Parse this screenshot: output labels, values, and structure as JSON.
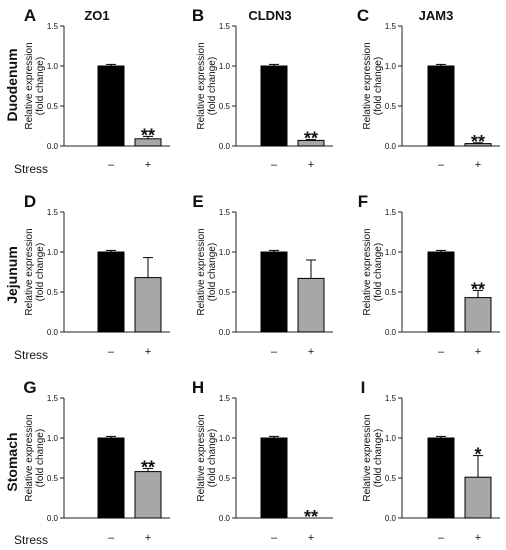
{
  "figure": {
    "column_titles": [
      "ZO1",
      "CLDN3",
      "JAM3"
    ],
    "row_labels": [
      "Duodenum",
      "Jejunum",
      "Stomach"
    ],
    "stress_label": "Stress"
  },
  "colors": {
    "control": "#000000",
    "stress": "#a7a7aa",
    "axis": "#222222"
  },
  "chart_data": [
    {
      "panel": "A",
      "type": "bar",
      "title": "ZO1",
      "categories": [
        "–",
        "+"
      ],
      "values": [
        1.0,
        0.09
      ],
      "errors": [
        0.02,
        0.03
      ],
      "significance": [
        "",
        "**"
      ],
      "ylabel": "Relative expression\n(fold change)",
      "ylim": [
        0,
        1.5
      ],
      "yticks": [
        "0.0",
        "0.5",
        "1.0",
        "1.5"
      ]
    },
    {
      "panel": "B",
      "type": "bar",
      "title": "CLDN3",
      "categories": [
        "–",
        "+"
      ],
      "values": [
        1.0,
        0.07
      ],
      "errors": [
        0.02,
        0.01
      ],
      "significance": [
        "",
        "**"
      ],
      "ylabel": "Relative expression\n(fold change)",
      "ylim": [
        0,
        1.5
      ],
      "yticks": [
        "0.0",
        "0.5",
        "1.0",
        "1.5"
      ]
    },
    {
      "panel": "C",
      "type": "bar",
      "title": "JAM3",
      "categories": [
        "–",
        "+"
      ],
      "values": [
        1.0,
        0.03
      ],
      "errors": [
        0.02,
        0.01
      ],
      "significance": [
        "",
        "**"
      ],
      "ylabel": "Relative expression\n(fold change)",
      "ylim": [
        0,
        1.5
      ],
      "yticks": [
        "0.0",
        "0.5",
        "1.0",
        "1.5"
      ]
    },
    {
      "panel": "D",
      "type": "bar",
      "categories": [
        "–",
        "+"
      ],
      "values": [
        1.0,
        0.68
      ],
      "errors": [
        0.02,
        0.25
      ],
      "significance": [
        "",
        ""
      ],
      "ylabel": "Relative expression\n(fold change)",
      "ylim": [
        0,
        1.5
      ],
      "yticks": [
        "0.0",
        "0.5",
        "1.0",
        "1.5"
      ]
    },
    {
      "panel": "E",
      "type": "bar",
      "categories": [
        "–",
        "+"
      ],
      "values": [
        1.0,
        0.67
      ],
      "errors": [
        0.02,
        0.23
      ],
      "significance": [
        "",
        ""
      ],
      "ylabel": "Relative expression\n(fold change)",
      "ylim": [
        0,
        1.5
      ],
      "yticks": [
        "0.0",
        "0.5",
        "1.0",
        "1.5"
      ]
    },
    {
      "panel": "F",
      "type": "bar",
      "categories": [
        "–",
        "+"
      ],
      "values": [
        1.0,
        0.43
      ],
      "errors": [
        0.02,
        0.09
      ],
      "significance": [
        "",
        "**"
      ],
      "ylabel": "Relative expression\n(fold change)",
      "ylim": [
        0,
        1.5
      ],
      "yticks": [
        "0.0",
        "0.5",
        "1.0",
        "1.5"
      ]
    },
    {
      "panel": "G",
      "type": "bar",
      "categories": [
        "–",
        "+"
      ],
      "values": [
        1.0,
        0.58
      ],
      "errors": [
        0.02,
        0.04
      ],
      "significance": [
        "",
        "**"
      ],
      "ylabel": "Relative expression\n(fold change)",
      "ylim": [
        0,
        1.5
      ],
      "yticks": [
        "0.0",
        "0.5",
        "1.0",
        "1.5"
      ]
    },
    {
      "panel": "H",
      "type": "bar",
      "categories": [
        "–",
        "+"
      ],
      "values": [
        1.0,
        0.0
      ],
      "errors": [
        0.02,
        0.0
      ],
      "significance": [
        "",
        "**"
      ],
      "ylabel": "Relative expression\n(fold change)",
      "ylim": [
        0,
        1.5
      ],
      "yticks": [
        "0.0",
        "0.5",
        "1.0",
        "1.5"
      ]
    },
    {
      "panel": "I",
      "type": "bar",
      "categories": [
        "–",
        "+"
      ],
      "values": [
        1.0,
        0.51
      ],
      "errors": [
        0.02,
        0.27
      ],
      "significance": [
        "",
        "*"
      ],
      "ylabel": "Relative expression\n(fold change)",
      "ylim": [
        0,
        1.5
      ],
      "yticks": [
        "0.0",
        "0.5",
        "1.0",
        "1.5"
      ]
    }
  ]
}
